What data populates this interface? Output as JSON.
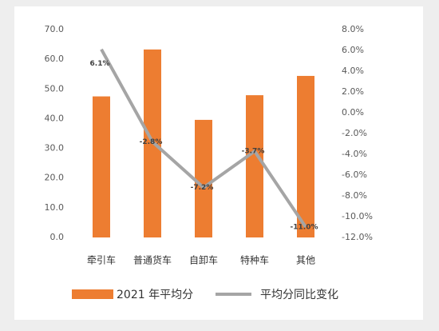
{
  "chart_data": {
    "type": "bar",
    "categories": [
      "牵引车",
      "普通货车",
      "自卸车",
      "特种车",
      "其他"
    ],
    "series": [
      {
        "name": "2021 年平均分",
        "color": "#ed7d31",
        "values": [
          47.5,
          63.3,
          39.6,
          47.9,
          54.4
        ]
      },
      {
        "name": "平均分同比变化",
        "type": "line",
        "axis": "y2",
        "color": "#a5a5a5",
        "values": [
          6.1,
          -2.8,
          -7.2,
          -3.7,
          -11.0
        ],
        "value_labels": [
          "6.1%",
          "-2.8%",
          "-7.2%",
          "-3.7%",
          "-11.0%"
        ]
      }
    ],
    "ylim": [
      0,
      70
    ],
    "yticks": [
      {
        "value": 0,
        "label": "0.0"
      },
      {
        "value": 10,
        "label": "10.0"
      },
      {
        "value": 20,
        "label": "20.0"
      },
      {
        "value": 30,
        "label": "30.0"
      },
      {
        "value": 40,
        "label": "40.0"
      },
      {
        "value": 50,
        "label": "50.0"
      },
      {
        "value": 60,
        "label": "60.0"
      },
      {
        "value": 70,
        "label": "70.0"
      }
    ],
    "y2lim": [
      -12,
      8
    ],
    "y2ticks": [
      {
        "value": -12,
        "label": "-12.0%"
      },
      {
        "value": -10,
        "label": "-10.0%"
      },
      {
        "value": -8,
        "label": "-8.0%"
      },
      {
        "value": -6,
        "label": "-6.0%"
      },
      {
        "value": -4,
        "label": "-4.0%"
      },
      {
        "value": -2,
        "label": "-2.0%"
      },
      {
        "value": 0,
        "label": "0.0%"
      },
      {
        "value": 2,
        "label": "2.0%"
      },
      {
        "value": 4,
        "label": "4.0%"
      },
      {
        "value": 6,
        "label": "6.0%"
      },
      {
        "value": 8,
        "label": "8.0%"
      }
    ],
    "grid": false,
    "legend": "bottom"
  }
}
